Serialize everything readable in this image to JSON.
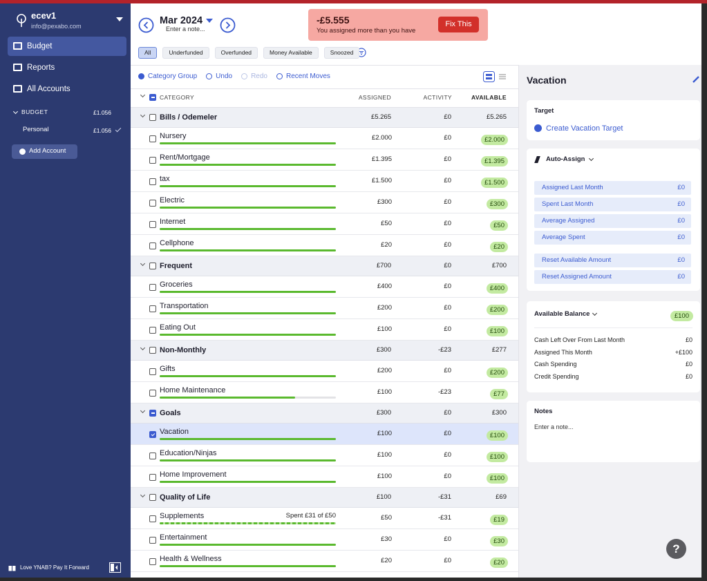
{
  "sidebar": {
    "user": "ecev1",
    "email": "info@pexabo.com",
    "nav": [
      "Budget",
      "Reports",
      "All Accounts"
    ],
    "budget_label": "BUDGET",
    "budget_total": "£1.056",
    "accounts": [
      {
        "name": "Personal",
        "balance": "£1.056"
      }
    ],
    "add_account": "Add Account",
    "footer": "Love YNAB? Pay It Forward"
  },
  "header": {
    "month": "Mar 2024",
    "note_placeholder": "Enter a note...",
    "alert": {
      "amount": "-£5.555",
      "message": "You assigned more than you have",
      "button": "Fix This"
    },
    "filters": [
      "All",
      "Underfunded",
      "Overfunded",
      "Money Available",
      "Snoozed"
    ]
  },
  "toolbar": [
    "Category Group",
    "Undo",
    "Redo",
    "Recent Moves"
  ],
  "table": {
    "columns": [
      "CATEGORY",
      "ASSIGNED",
      "ACTIVITY",
      "AVAILABLE"
    ],
    "groups": [
      {
        "name": "Bills / Odemeler",
        "assigned": "£5.265",
        "activity": "£0",
        "available": "£5.265",
        "categories": [
          {
            "name": "Nursery",
            "assigned": "£2.000",
            "activity": "£0",
            "available": "£2.000",
            "progress": 100
          },
          {
            "name": "Rent/Mortgage",
            "assigned": "£1.395",
            "activity": "£0",
            "available": "£1.395",
            "progress": 100
          },
          {
            "name": "tax",
            "assigned": "£1.500",
            "activity": "£0",
            "available": "£1.500",
            "progress": 100
          },
          {
            "name": "Electric",
            "assigned": "£300",
            "activity": "£0",
            "available": "£300",
            "progress": 100
          },
          {
            "name": "Internet",
            "assigned": "£50",
            "activity": "£0",
            "available": "£50",
            "progress": 100
          },
          {
            "name": "Cellphone",
            "assigned": "£20",
            "activity": "£0",
            "available": "£20",
            "progress": 100
          }
        ]
      },
      {
        "name": "Frequent",
        "assigned": "£700",
        "activity": "£0",
        "available": "£700",
        "categories": [
          {
            "name": "Groceries",
            "assigned": "£400",
            "activity": "£0",
            "available": "£400",
            "progress": 100
          },
          {
            "name": "Transportation",
            "assigned": "£200",
            "activity": "£0",
            "available": "£200",
            "progress": 100
          },
          {
            "name": "Eating Out",
            "assigned": "£100",
            "activity": "£0",
            "available": "£100",
            "progress": 100
          }
        ]
      },
      {
        "name": "Non-Monthly",
        "assigned": "£300",
        "activity": "-£23",
        "available": "£277",
        "categories": [
          {
            "name": "Gifts",
            "assigned": "£200",
            "activity": "£0",
            "available": "£200",
            "progress": 100
          },
          {
            "name": "Home Maintenance",
            "assigned": "£100",
            "activity": "-£23",
            "available": "£77",
            "progress": 77
          }
        ]
      },
      {
        "name": "Goals",
        "assigned": "£300",
        "activity": "£0",
        "available": "£300",
        "partially_selected": true,
        "categories": [
          {
            "name": "Vacation",
            "assigned": "£100",
            "activity": "£0",
            "available": "£100",
            "progress": 100,
            "checked": true
          },
          {
            "name": "Education/Ninjas",
            "assigned": "£100",
            "activity": "£0",
            "available": "£100",
            "progress": 100
          },
          {
            "name": "Home Improvement",
            "assigned": "£100",
            "activity": "£0",
            "available": "£100",
            "progress": 100
          }
        ]
      },
      {
        "name": "Quality of Life",
        "assigned": "£100",
        "activity": "-£31",
        "available": "£69",
        "categories": [
          {
            "name": "Supplements",
            "assigned": "£50",
            "activity": "-£31",
            "available": "£19",
            "progress": 100,
            "note": "Spent £31 of £50",
            "bar_style": "striped"
          },
          {
            "name": "Entertainment",
            "assigned": "£30",
            "activity": "£0",
            "available": "£30",
            "progress": 100
          },
          {
            "name": "Health & Wellness",
            "assigned": "£20",
            "activity": "£0",
            "available": "£20",
            "progress": 100
          }
        ]
      }
    ]
  },
  "right_panel": {
    "title": "Vacation",
    "target": {
      "label": "Target",
      "action": "Create Vacation Target"
    },
    "auto_assign": {
      "label": "Auto-Assign",
      "items": [
        {
          "label": "Assigned Last Month",
          "value": "£0"
        },
        {
          "label": "Spent Last Month",
          "value": "£0"
        },
        {
          "label": "Average Assigned",
          "value": "£0"
        },
        {
          "label": "Average Spent",
          "value": "£0"
        }
      ],
      "reset_items": [
        {
          "label": "Reset Available Amount",
          "value": "£0"
        },
        {
          "label": "Reset Assigned Amount",
          "value": "£0"
        }
      ]
    },
    "available_balance": {
      "label": "Available Balance",
      "value": "£100",
      "rows": [
        {
          "label": "Cash Left Over From Last Month",
          "value": "£0"
        },
        {
          "label": "Assigned This Month",
          "value": "+£100"
        },
        {
          "label": "Cash Spending",
          "value": "£0"
        },
        {
          "label": "Credit Spending",
          "value": "£0"
        }
      ]
    },
    "notes": {
      "label": "Notes",
      "placeholder": "Enter a note..."
    },
    "help": "?"
  }
}
